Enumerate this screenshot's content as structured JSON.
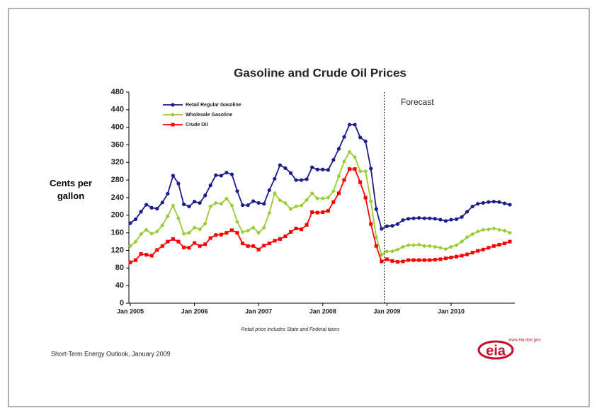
{
  "chart_data": {
    "type": "line",
    "title": "Gasoline and Crude Oil Prices",
    "y_label": "Cents per gallon",
    "annotation": "Forecast",
    "footnote": "Retail price includes State and Federal taxes",
    "source": "Short-Term Energy Outlook, January 2009",
    "logo": "eia",
    "logo_url": "www.eia.doe.gov",
    "categories": [
      "Jan 2005",
      null,
      null,
      null,
      null,
      null,
      null,
      null,
      null,
      null,
      null,
      null,
      "Jan 2006",
      null,
      null,
      null,
      null,
      null,
      null,
      null,
      null,
      null,
      null,
      null,
      "Jan 2007",
      null,
      null,
      null,
      null,
      null,
      null,
      null,
      null,
      null,
      null,
      null,
      "Jan 2008",
      null,
      null,
      null,
      null,
      null,
      null,
      null,
      null,
      null,
      null,
      null,
      "Jan 2009",
      null,
      null,
      null,
      null,
      null,
      null,
      null,
      null,
      null,
      null,
      null,
      "Jan 2010",
      null,
      null,
      null,
      null,
      null,
      null,
      null,
      null,
      null,
      null,
      null
    ],
    "ylim": [
      0,
      480
    ],
    "yticks": [
      0,
      40,
      80,
      120,
      160,
      200,
      240,
      280,
      320,
      360,
      400,
      440,
      480
    ],
    "legend": "upper left",
    "series": [
      {
        "name": "Retail Regular Gasoline",
        "color": "#1c1c8c",
        "marker": "circle",
        "values": [
          182,
          191,
          208,
          224,
          217,
          215,
          229,
          249,
          290,
          272,
          225,
          220,
          231,
          228,
          245,
          268,
          291,
          290,
          297,
          293,
          255,
          223,
          223,
          232,
          228,
          226,
          257,
          283,
          314,
          307,
          296,
          280,
          280,
          282,
          309,
          304,
          304,
          303,
          326,
          351,
          378,
          406,
          406,
          377,
          368,
          306,
          214,
          169,
          175,
          176,
          180,
          189,
          192,
          193,
          194,
          193,
          193,
          192,
          190,
          187,
          190,
          191,
          196,
          208,
          220,
          226,
          228,
          230,
          231,
          230,
          227,
          224
        ]
      },
      {
        "name": "Wholesale Gasoline",
        "color": "#99cc33",
        "marker": "diamond",
        "values": [
          130,
          140,
          157,
          167,
          158,
          163,
          177,
          198,
          222,
          193,
          158,
          160,
          172,
          168,
          181,
          220,
          228,
          226,
          238,
          222,
          185,
          162,
          165,
          172,
          160,
          172,
          205,
          250,
          234,
          228,
          214,
          220,
          222,
          235,
          250,
          238,
          238,
          240,
          255,
          289,
          322,
          344,
          332,
          300,
          300,
          232,
          150,
          110,
          118,
          118,
          122,
          128,
          132,
          132,
          133,
          130,
          130,
          128,
          126,
          123,
          128,
          132,
          140,
          150,
          157,
          163,
          167,
          168,
          170,
          167,
          165,
          160
        ]
      },
      {
        "name": "Crude Oil",
        "color": "#ff0000",
        "marker": "square",
        "values": [
          93,
          98,
          112,
          110,
          108,
          121,
          130,
          140,
          146,
          140,
          127,
          126,
          137,
          130,
          134,
          148,
          155,
          156,
          160,
          166,
          160,
          136,
          130,
          130,
          122,
          131,
          136,
          142,
          146,
          152,
          162,
          170,
          168,
          178,
          207,
          206,
          207,
          210,
          230,
          250,
          280,
          305,
          305,
          275,
          240,
          180,
          130,
          95,
          100,
          96,
          94,
          95,
          98,
          98,
          98,
          98,
          98,
          99,
          100,
          102,
          104,
          106,
          108,
          111,
          115,
          119,
          122,
          126,
          130,
          133,
          136,
          140
        ]
      }
    ]
  }
}
